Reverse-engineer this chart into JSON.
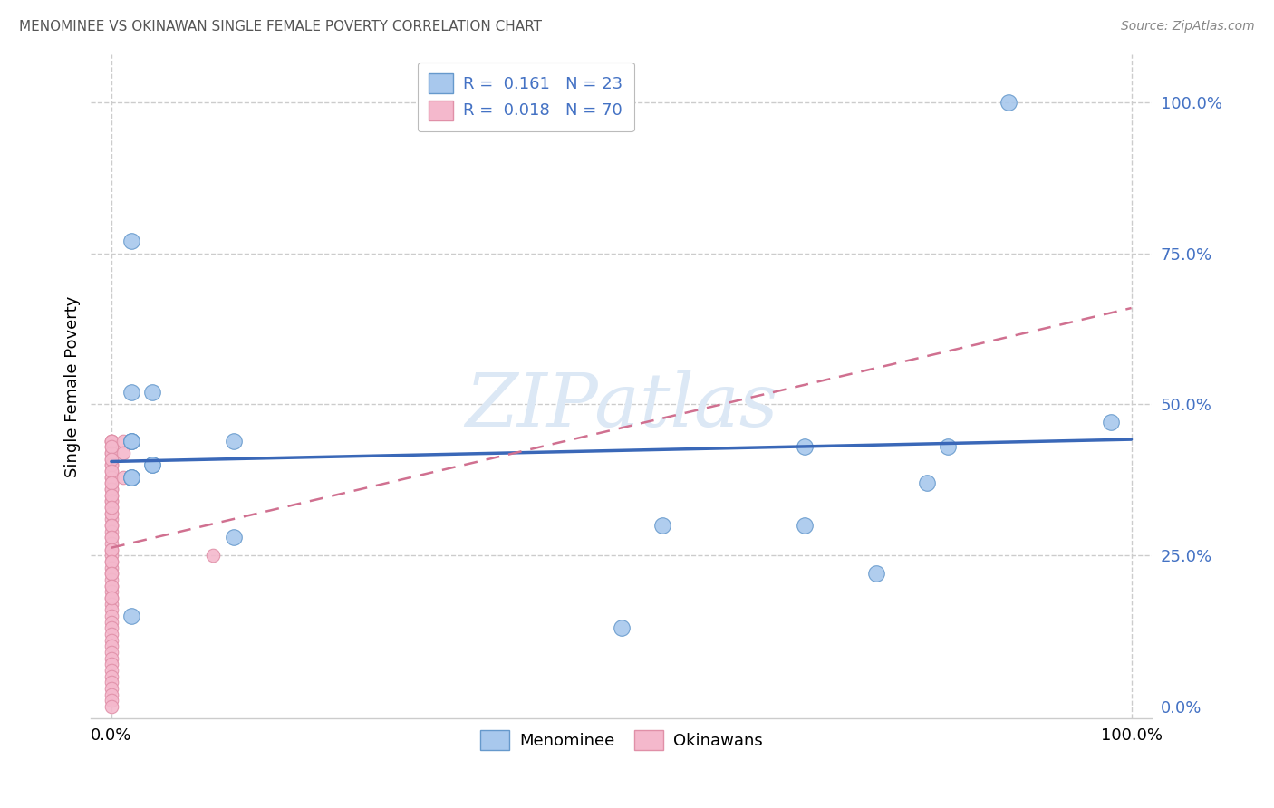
{
  "title": "MENOMINEE VS OKINAWAN SINGLE FEMALE POVERTY CORRELATION CHART",
  "source": "Source: ZipAtlas.com",
  "ylabel": "Single Female Poverty",
  "ytick_vals": [
    0.0,
    0.25,
    0.5,
    0.75,
    1.0
  ],
  "ytick_labels": [
    "0.0%",
    "25.0%",
    "50.0%",
    "75.0%",
    "100.0%"
  ],
  "xtick_vals": [
    0.0,
    1.0
  ],
  "xtick_labels": [
    "0.0%",
    "100.0%"
  ],
  "xlim": [
    -0.02,
    1.02
  ],
  "ylim": [
    -0.02,
    1.08
  ],
  "menominee_R": 0.161,
  "menominee_N": 23,
  "okinawan_R": 0.018,
  "okinawan_N": 70,
  "legend_label1": "Menominee",
  "legend_label2": "Okinawans",
  "menominee_color": "#a8c8ed",
  "menominee_edge": "#6699cc",
  "okinawan_color": "#f4b8cc",
  "okinawan_edge": "#e090a8",
  "trendline_men_color": "#3a68b8",
  "trendline_oki_color": "#d07090",
  "watermark_color": "#dce8f5",
  "background_color": "#ffffff",
  "grid_color": "#cccccc",
  "tick_color": "#4472C4",
  "title_color": "#555555",
  "source_color": "#888888",
  "menominee_x": [
    0.02,
    0.02,
    0.04,
    0.04,
    0.02,
    0.02,
    0.02,
    0.02,
    0.02,
    0.02,
    0.02,
    0.12,
    0.12,
    0.5,
    0.54,
    0.68,
    0.68,
    0.8,
    0.82,
    0.88,
    0.98,
    0.75,
    0.04
  ],
  "menominee_y": [
    0.77,
    0.52,
    0.52,
    0.4,
    0.44,
    0.44,
    0.44,
    0.38,
    0.38,
    0.38,
    0.15,
    0.44,
    0.28,
    0.13,
    0.3,
    0.43,
    0.3,
    0.37,
    0.43,
    1.0,
    0.47,
    0.22,
    0.4
  ],
  "okinawan_x": [
    0.0,
    0.0,
    0.0,
    0.0,
    0.0,
    0.0,
    0.0,
    0.0,
    0.0,
    0.0,
    0.0,
    0.0,
    0.0,
    0.0,
    0.0,
    0.0,
    0.0,
    0.0,
    0.0,
    0.0,
    0.0,
    0.0,
    0.0,
    0.0,
    0.0,
    0.0,
    0.0,
    0.0,
    0.0,
    0.0,
    0.0,
    0.0,
    0.0,
    0.0,
    0.0,
    0.0,
    0.0,
    0.0,
    0.0,
    0.0,
    0.0,
    0.0,
    0.0,
    0.0,
    0.0,
    0.0,
    0.0,
    0.0,
    0.0,
    0.0,
    0.0,
    0.0,
    0.0,
    0.0,
    0.0,
    0.0,
    0.0,
    0.0,
    0.0,
    0.0,
    0.0,
    0.0,
    0.0,
    0.0,
    0.0,
    0.0,
    0.012,
    0.012,
    0.012,
    0.1
  ],
  "okinawan_y": [
    0.44,
    0.43,
    0.42,
    0.41,
    0.4,
    0.39,
    0.38,
    0.37,
    0.36,
    0.35,
    0.34,
    0.33,
    0.32,
    0.31,
    0.3,
    0.29,
    0.28,
    0.27,
    0.26,
    0.25,
    0.24,
    0.23,
    0.22,
    0.21,
    0.2,
    0.19,
    0.18,
    0.17,
    0.16,
    0.15,
    0.14,
    0.13,
    0.12,
    0.11,
    0.1,
    0.09,
    0.08,
    0.07,
    0.06,
    0.05,
    0.04,
    0.03,
    0.02,
    0.01,
    0.0,
    0.44,
    0.42,
    0.4,
    0.38,
    0.36,
    0.34,
    0.32,
    0.3,
    0.28,
    0.26,
    0.24,
    0.22,
    0.2,
    0.18,
    0.44,
    0.43,
    0.41,
    0.39,
    0.37,
    0.35,
    0.33,
    0.44,
    0.42,
    0.38,
    0.25
  ]
}
